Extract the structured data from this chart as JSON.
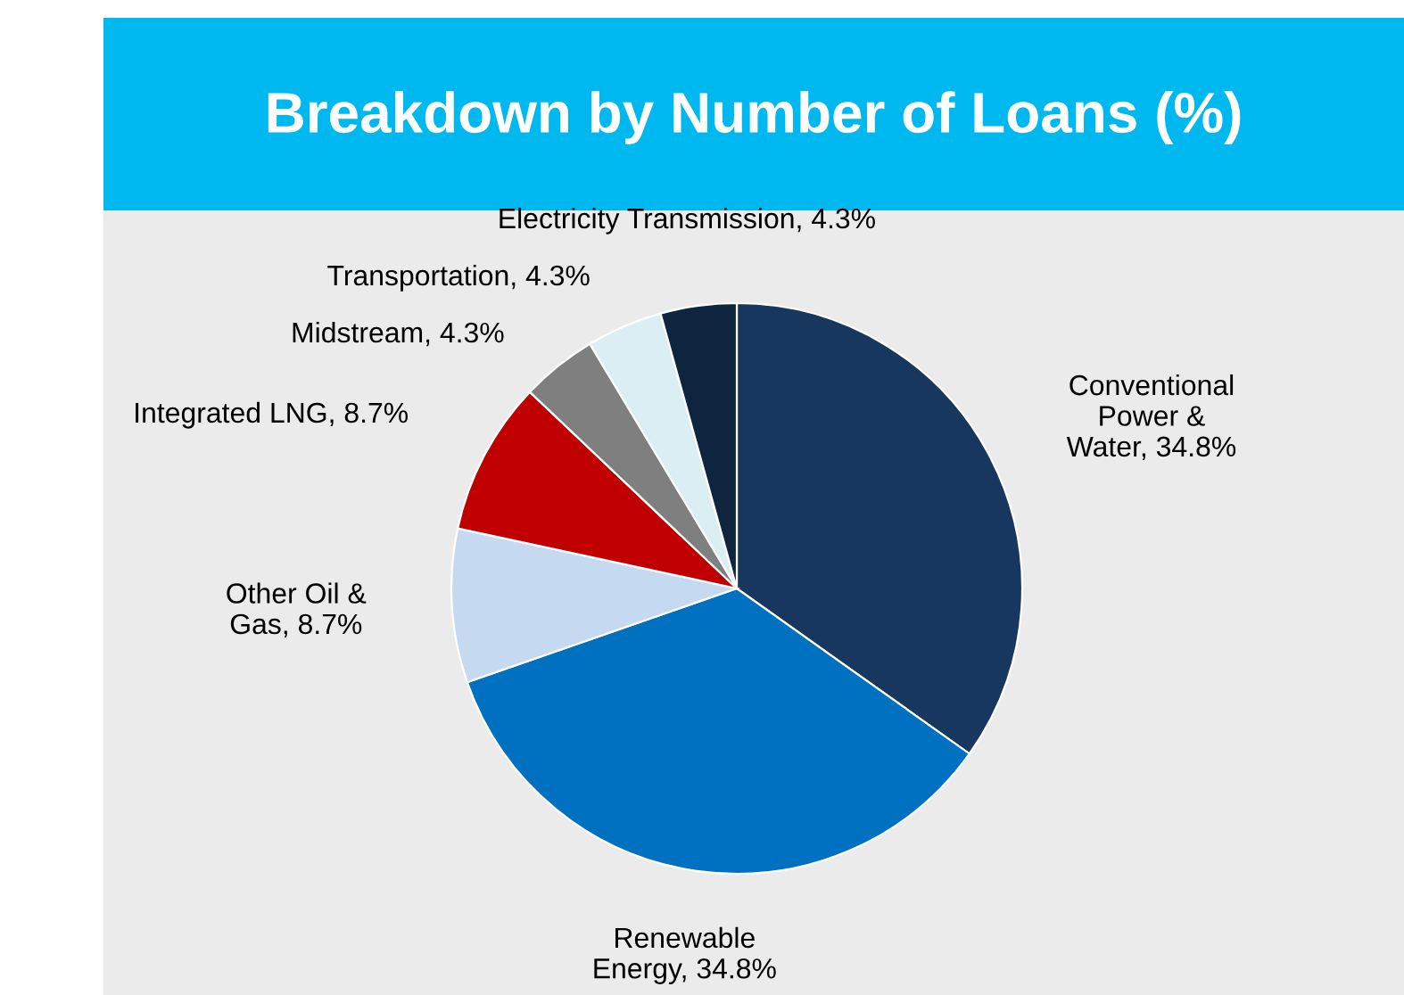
{
  "chart_data": {
    "type": "pie",
    "title": "Breakdown by Number of Loans (%)",
    "categories": [
      "Conventional\nPower &\nWater",
      "Renewable\nEnergy",
      "Other Oil &\nGas",
      "Integrated LNG",
      "Midstream",
      "Transportation",
      "Electricity Transmission"
    ],
    "values": [
      34.8,
      34.8,
      8.7,
      8.7,
      4.3,
      4.3,
      4.3
    ],
    "value_labels": [
      "34.8%",
      "34.8%",
      "8.7%",
      "8.7%",
      "4.3%",
      "4.3%",
      "4.3%"
    ],
    "colors": [
      "#17375e",
      "#0070c0",
      "#c5d9f1",
      "#c00000",
      "#7f7f7f",
      "#dbeef4",
      "#0f243e"
    ]
  }
}
